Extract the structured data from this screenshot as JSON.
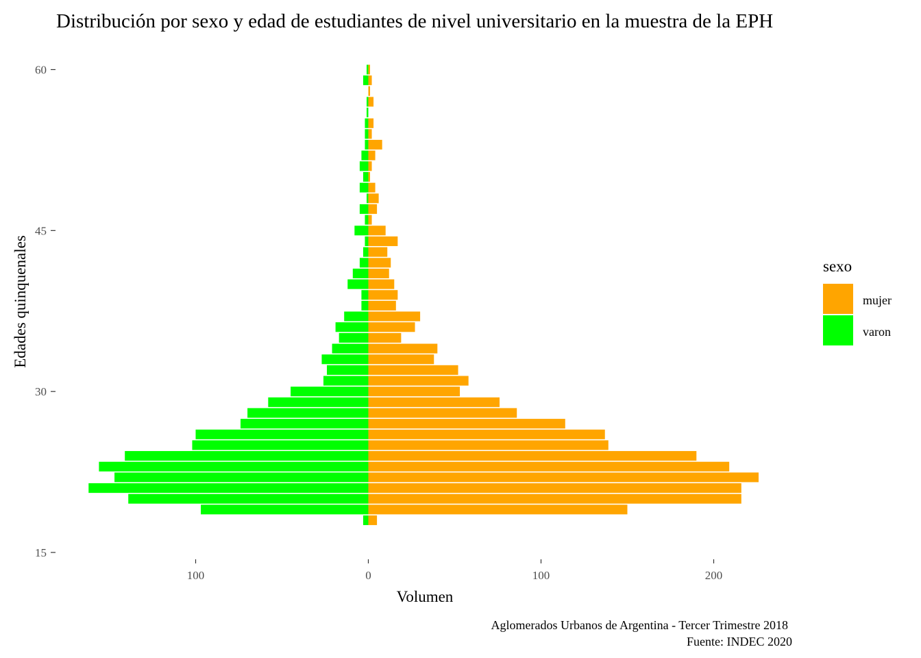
{
  "chart_data": {
    "type": "bar",
    "orientation": "horizontal",
    "layout": "population-pyramid",
    "title": "Distribución por sexo y edad de estudiantes de nivel universitario en la muestra de la EPH",
    "xlabel": "Volumen",
    "ylabel": "Edades quinquenales",
    "caption": [
      "Aglomerados Urbanos de Argentina - Tercer Trimestre 2018",
      "Fuente: INDEC 2020"
    ],
    "xlim": [
      -162,
      228
    ],
    "ylim": [
      15,
      60
    ],
    "x_ticks": [
      -100,
      0,
      100,
      200
    ],
    "x_tick_labels": [
      "100",
      "0",
      "100",
      "200"
    ],
    "y_ticks": [
      15,
      30,
      45,
      60
    ],
    "y_tick_labels": [
      "15",
      "30",
      "45",
      "60"
    ],
    "grid": false,
    "legend": {
      "title": "sexo",
      "position": "right"
    },
    "ages": [
      18,
      19,
      20,
      21,
      22,
      23,
      24,
      25,
      26,
      27,
      28,
      29,
      30,
      31,
      32,
      33,
      34,
      35,
      36,
      37,
      38,
      39,
      40,
      41,
      42,
      43,
      44,
      45,
      46,
      47,
      48,
      49,
      50,
      51,
      52,
      53,
      54,
      55,
      56,
      57,
      58,
      59,
      60
    ],
    "series": [
      {
        "name": "mujer",
        "color": "#FFA500",
        "values": [
          5,
          150,
          216,
          216,
          226,
          209,
          190,
          139,
          137,
          114,
          86,
          76,
          53,
          58,
          52,
          38,
          40,
          19,
          27,
          30,
          16,
          17,
          15,
          12,
          13,
          11,
          17,
          10,
          2,
          5,
          6,
          4,
          1,
          2,
          4,
          8,
          2,
          3,
          0,
          3,
          1,
          2,
          1
        ]
      },
      {
        "name": "varon",
        "color": "#00FF00",
        "values": [
          3,
          97,
          139,
          162,
          147,
          156,
          141,
          102,
          100,
          74,
          70,
          58,
          45,
          26,
          24,
          27,
          21,
          17,
          19,
          14,
          4,
          4,
          12,
          9,
          5,
          3,
          2,
          8,
          2,
          5,
          1,
          5,
          3,
          5,
          4,
          2,
          2,
          2,
          1,
          1,
          0,
          3,
          1
        ]
      }
    ]
  }
}
